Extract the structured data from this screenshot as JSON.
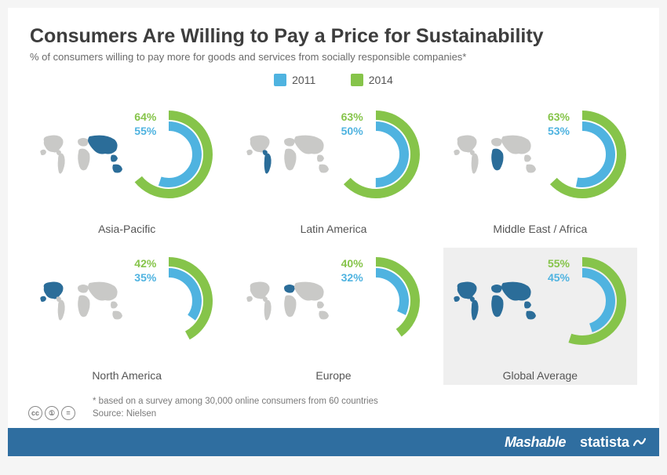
{
  "title": "Consumers Are Willing to Pay a Price for Sustainability",
  "subtitle": "% of consumers willing to pay more for goods and services from socially responsible companies*",
  "legend": {
    "items": [
      {
        "label": "2011",
        "color": "#4fb3e0"
      },
      {
        "label": "2014",
        "color": "#86c44a"
      }
    ]
  },
  "colors": {
    "series_2011": "#4fb3e0",
    "series_2014": "#86c44a",
    "map_base": "#c9c9c7",
    "map_highlight": "#2b6d99",
    "panel_bg": "#ffffff",
    "panel_highlight_bg": "#efefef",
    "title_text": "#3d3d3d",
    "subtitle_text": "#6a6a6a",
    "label_text": "#555555",
    "footer_bg": "#2f6ea0",
    "donut_stroke_width_outer": 12,
    "donut_stroke_width_inner": 12,
    "donut_radius_outer": 50,
    "donut_radius_inner": 36
  },
  "regions": [
    {
      "key": "asia_pacific",
      "label": "Asia-Pacific",
      "v2011": 55,
      "v2014": 64,
      "highlight": false,
      "map_region": "asia"
    },
    {
      "key": "latin_america",
      "label": "Latin America",
      "v2011": 50,
      "v2014": 63,
      "highlight": false,
      "map_region": "latam"
    },
    {
      "key": "mea",
      "label": "Middle East / Africa",
      "v2011": 53,
      "v2014": 63,
      "highlight": false,
      "map_region": "africa"
    },
    {
      "key": "north_america",
      "label": "North America",
      "v2011": 35,
      "v2014": 42,
      "highlight": false,
      "map_region": "na"
    },
    {
      "key": "europe",
      "label": "Europe",
      "v2011": 32,
      "v2014": 40,
      "highlight": false,
      "map_region": "europe"
    },
    {
      "key": "global",
      "label": "Global Average",
      "v2011": 45,
      "v2014": 55,
      "highlight": true,
      "map_region": "all"
    }
  ],
  "footnote": "* based on a survey among 30,000 online consumers from 60 countries",
  "source": "Source: Nielsen",
  "footer": {
    "brand_left": "Mashable",
    "brand_right": "statista"
  }
}
